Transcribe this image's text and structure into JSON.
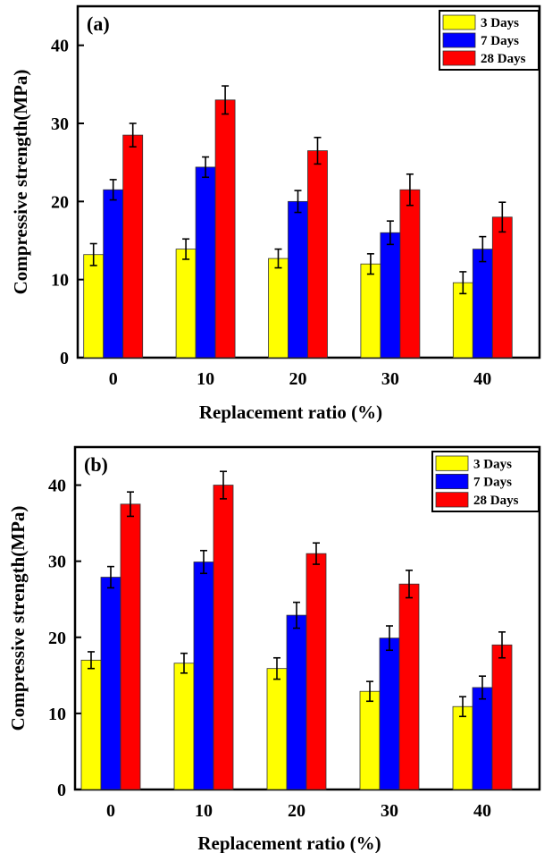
{
  "chart_data": [
    {
      "type": "bar",
      "panel_label": "(a)",
      "xlabel": "Replacement ratio (%)",
      "ylabel": "Compressive strength(MPa)",
      "ylim": [
        0,
        45
      ],
      "yticks": [
        0,
        10,
        20,
        30,
        40
      ],
      "categories": [
        "0",
        "10",
        "20",
        "30",
        "40"
      ],
      "legend_position": "top-right",
      "series": [
        {
          "name": "3 Days",
          "color": "#ffff00",
          "values": [
            13.2,
            13.9,
            12.7,
            12.0,
            9.6
          ],
          "errors": [
            1.4,
            1.3,
            1.2,
            1.3,
            1.4
          ]
        },
        {
          "name": "7 Days",
          "color": "#0000ff",
          "values": [
            21.5,
            24.4,
            20.0,
            16.0,
            13.9
          ],
          "errors": [
            1.3,
            1.3,
            1.4,
            1.5,
            1.6
          ]
        },
        {
          "name": "28 Days",
          "color": "#ff0000",
          "values": [
            28.5,
            33.0,
            26.5,
            21.5,
            18.0
          ],
          "errors": [
            1.5,
            1.8,
            1.7,
            2.0,
            1.9
          ]
        }
      ]
    },
    {
      "type": "bar",
      "panel_label": "(b)",
      "xlabel": "Replacement ratio (%)",
      "ylabel": "Compressive strength(MPa)",
      "ylim": [
        0,
        45
      ],
      "yticks": [
        0,
        10,
        20,
        30,
        40
      ],
      "categories": [
        "0",
        "10",
        "20",
        "30",
        "40"
      ],
      "legend_position": "top-right",
      "series": [
        {
          "name": "3 Days",
          "color": "#ffff00",
          "values": [
            17.0,
            16.6,
            15.9,
            12.9,
            10.9
          ],
          "errors": [
            1.1,
            1.3,
            1.4,
            1.3,
            1.3
          ]
        },
        {
          "name": "7 Days",
          "color": "#0000ff",
          "values": [
            27.9,
            29.9,
            22.9,
            19.9,
            13.4
          ],
          "errors": [
            1.4,
            1.5,
            1.7,
            1.6,
            1.5
          ]
        },
        {
          "name": "28 Days",
          "color": "#ff0000",
          "values": [
            37.5,
            40.0,
            31.0,
            27.0,
            19.0
          ],
          "errors": [
            1.6,
            1.8,
            1.4,
            1.8,
            1.7
          ]
        }
      ]
    }
  ]
}
